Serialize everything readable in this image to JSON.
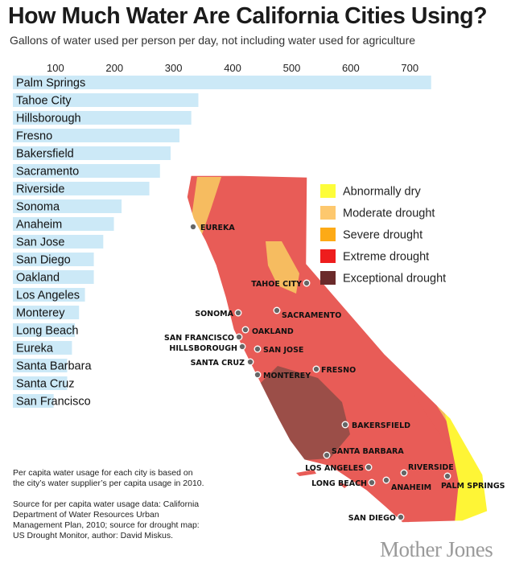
{
  "chart_data": {
    "type": "bar",
    "orientation": "horizontal",
    "title": "How Much Water Are California Cities Using?",
    "subtitle": "Gallons of water used per person per day, not including water used for agriculture",
    "x_ticks": [
      100,
      200,
      300,
      400,
      500,
      600,
      700
    ],
    "xlim": [
      28,
      765
    ],
    "grid": false,
    "bar_color": "#cce9f7",
    "categories": [
      "Palm Springs",
      "Tahoe City",
      "Hillsborough",
      "Fresno",
      "Bakersfield",
      "Sacramento",
      "Riverside",
      "Sonoma",
      "Anaheim",
      "San Jose",
      "San Diego",
      "Oakland",
      "Los Angeles",
      "Monterey",
      "Long Beach",
      "Eureka",
      "Santa Barbara",
      "Santa Cruz",
      "San Francisco"
    ],
    "values": [
      736,
      342,
      330,
      310,
      295,
      277,
      259,
      212,
      199,
      181,
      165,
      165,
      150,
      140,
      133,
      128,
      120,
      120,
      97
    ]
  },
  "map": {
    "legend": [
      {
        "label": "Abnormally dry",
        "color": "#fdfd3a"
      },
      {
        "label": "Moderate drought",
        "color": "#fdc86e"
      },
      {
        "label": "Severe drought",
        "color": "#fdaa16"
      },
      {
        "label": "Extreme drought",
        "color": "#ee1d1d"
      },
      {
        "label": "Exceptional drought",
        "color": "#6b2a2a"
      }
    ],
    "cities": [
      "EUREKA",
      "TAHOE CITY",
      "SONOMA",
      "SACRAMENTO",
      "OAKLAND",
      "SAN FRANCISCO",
      "HILLSBOROUGH",
      "SAN JOSE",
      "SANTA CRUZ",
      "MONTEREY",
      "FRESNO",
      "BAKERSFIELD",
      "SANTA BARBARA",
      "LOS ANGELES",
      "RIVERSIDE",
      "LONG BEACH",
      "ANAHEIM",
      "PALM SPRINGS",
      "SAN DIEGO"
    ]
  },
  "notes": {
    "usage": "Per capita water usage for each city is based on the city’s water supplier’s per capita usage in 2010.",
    "source": "Source for per capita water usage data: California Department of Water Resources Urban Management Plan, 2010; source for drought map: US Drought Monitor, author: David Miskus."
  },
  "brand": "Mother Jones"
}
